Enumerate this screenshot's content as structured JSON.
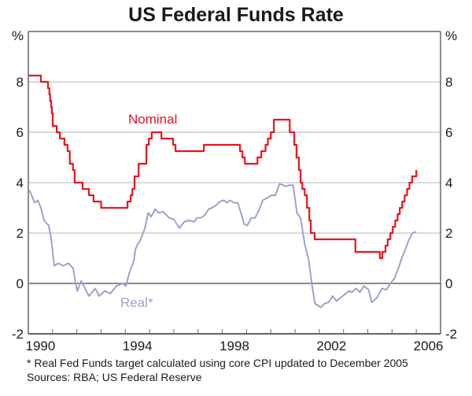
{
  "chart_data": {
    "type": "line",
    "title": "US Federal Funds Rate",
    "xlabel": "",
    "ylabel": "%",
    "ylabel_right": "%",
    "xlim": [
      1990,
      2007
    ],
    "ylim": [
      -2,
      10
    ],
    "x_tick_labels": [
      "1990",
      "1994",
      "1998",
      "2002",
      "2006"
    ],
    "y_tick_labels": [
      "-2",
      "0",
      "2",
      "4",
      "6",
      "8"
    ],
    "grid": true,
    "legend": "inline-labels",
    "series": [
      {
        "name": "Nominal",
        "color": "#e8141e",
        "step": true,
        "x": [
          1990.0,
          1990.52,
          1990.81,
          1990.87,
          1990.9,
          1990.94,
          1990.97,
          1991.01,
          1991.17,
          1991.3,
          1991.49,
          1991.62,
          1991.71,
          1991.84,
          1991.91,
          1991.97,
          1992.24,
          1992.5,
          1992.69,
          1993.0,
          1994.09,
          1994.22,
          1994.29,
          1994.38,
          1994.55,
          1994.87,
          1994.97,
          1995.09,
          1995.49,
          1995.97,
          1996.07,
          1997.24,
          1998.73,
          1998.83,
          1998.93,
          1999.45,
          1999.61,
          1999.78,
          1999.88,
          2000.0,
          2000.13,
          2000.36,
          2000.78,
          2000.97,
          2001.06,
          2001.16,
          2001.23,
          2001.3,
          2001.4,
          2001.49,
          2001.59,
          2001.65,
          2001.71,
          2001.81,
          2001.91,
          2002.92,
          2003.49,
          2004.5,
          2004.6,
          2004.73,
          2004.82,
          2004.93,
          2005.03,
          2005.13,
          2005.23,
          2005.32,
          2005.42,
          2005.52,
          2005.62,
          2005.72,
          2005.83,
          2005.93,
          2006.0
        ],
        "y": [
          8.25,
          8.0,
          7.75,
          7.5,
          7.25,
          7.0,
          6.75,
          6.25,
          6.0,
          5.75,
          5.5,
          5.25,
          4.75,
          4.5,
          4.0,
          4.0,
          3.75,
          3.5,
          3.25,
          3.0,
          3.25,
          3.5,
          3.75,
          4.25,
          4.75,
          5.5,
          5.75,
          6.0,
          5.75,
          5.5,
          5.25,
          5.5,
          5.25,
          5.0,
          4.75,
          5.0,
          5.25,
          5.5,
          5.75,
          6.0,
          6.5,
          6.5,
          6.0,
          5.5,
          5.0,
          4.5,
          4.0,
          3.75,
          3.5,
          3.0,
          2.5,
          2.0,
          2.0,
          1.75,
          1.75,
          1.75,
          1.25,
          1.0,
          1.25,
          1.5,
          1.75,
          2.0,
          2.25,
          2.5,
          2.75,
          3.0,
          3.25,
          3.5,
          3.75,
          4.0,
          4.25,
          4.25,
          4.5
        ]
      },
      {
        "name": "Real*",
        "color": "#9aa3cc",
        "step": false,
        "x": [
          1990.05,
          1990.26,
          1990.39,
          1990.52,
          1990.65,
          1990.84,
          1990.94,
          1991.07,
          1991.23,
          1991.43,
          1991.66,
          1991.85,
          1991.95,
          1992.02,
          1992.18,
          1992.34,
          1992.5,
          1992.76,
          1992.92,
          1993.15,
          1993.38,
          1993.64,
          1993.9,
          1994.03,
          1994.16,
          1994.35,
          1994.42,
          1994.48,
          1994.61,
          1994.81,
          1994.94,
          1995.07,
          1995.23,
          1995.39,
          1995.55,
          1995.71,
          1995.81,
          1996.0,
          1996.23,
          1996.43,
          1996.62,
          1996.85,
          1996.95,
          1997.11,
          1997.27,
          1997.44,
          1997.57,
          1997.73,
          1997.9,
          1998.06,
          1998.19,
          1998.32,
          1998.48,
          1998.64,
          1998.77,
          1998.9,
          1999.03,
          1999.19,
          1999.35,
          1999.51,
          1999.67,
          1999.87,
          2000.03,
          2000.19,
          2000.36,
          2000.52,
          2000.62,
          2000.75,
          2000.92,
          2001.08,
          2001.23,
          2001.4,
          2001.56,
          2001.69,
          2001.82,
          2002.06,
          2002.22,
          2002.38,
          2002.55,
          2002.71,
          2002.9,
          2003.03,
          2003.22,
          2003.35,
          2003.51,
          2003.67,
          2003.84,
          2004.03,
          2004.16,
          2004.39,
          2004.58,
          2004.77,
          2004.93,
          2005.1,
          2005.26,
          2005.42,
          2005.55,
          2005.68,
          2005.84,
          2006.0
        ],
        "y": [
          3.7,
          3.2,
          3.3,
          3.0,
          2.5,
          2.3,
          1.8,
          0.7,
          0.8,
          0.7,
          0.8,
          0.6,
          0.0,
          -0.3,
          0.1,
          -0.2,
          -0.5,
          -0.2,
          -0.5,
          -0.3,
          -0.4,
          -0.1,
          0.0,
          -0.1,
          0.4,
          0.9,
          1.35,
          1.5,
          1.7,
          2.2,
          2.8,
          2.65,
          2.95,
          2.8,
          2.85,
          2.7,
          2.6,
          2.55,
          2.2,
          2.45,
          2.5,
          2.45,
          2.6,
          2.6,
          2.7,
          2.95,
          3.0,
          3.1,
          3.25,
          3.3,
          3.2,
          3.3,
          3.2,
          3.2,
          2.8,
          2.35,
          2.3,
          2.6,
          2.6,
          2.9,
          3.3,
          3.4,
          3.5,
          3.5,
          3.95,
          3.9,
          3.85,
          3.9,
          3.9,
          2.8,
          2.6,
          1.55,
          0.95,
          0.0,
          -0.8,
          -0.95,
          -0.8,
          -0.75,
          -0.5,
          -0.7,
          -0.55,
          -0.45,
          -0.3,
          -0.35,
          -0.2,
          -0.35,
          -0.1,
          -0.25,
          -0.75,
          -0.55,
          -0.2,
          -0.25,
          0.0,
          0.2,
          0.6,
          1.05,
          1.35,
          1.7,
          2.0,
          2.05
        ]
      }
    ]
  },
  "footnote": "*   Real Fed Funds target calculated using core CPI updated to December 2005",
  "sources": "Sources: RBA; US Federal Reserve"
}
